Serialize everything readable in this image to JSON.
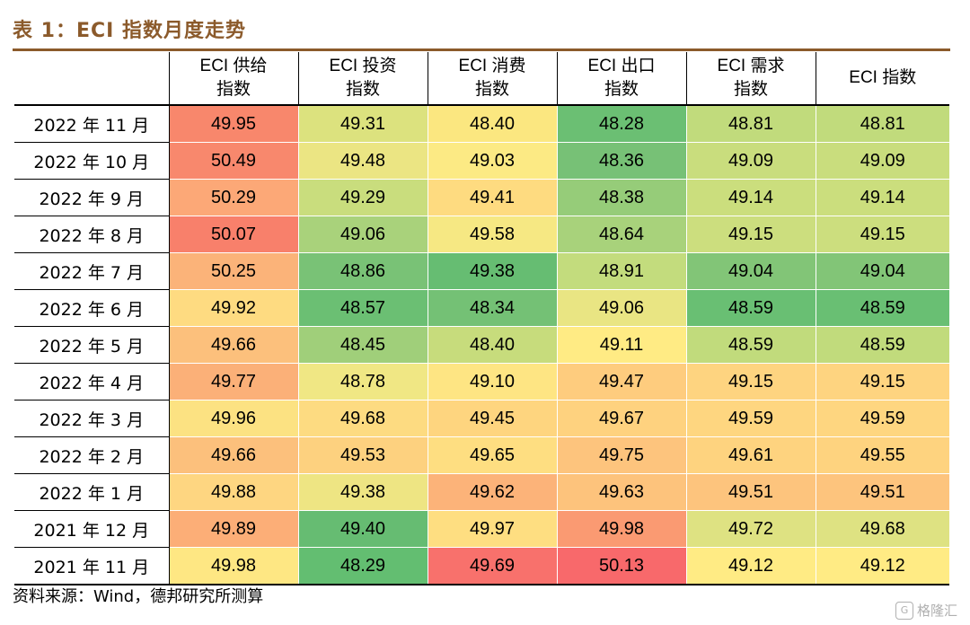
{
  "title": "表 1：ECI 指数月度走势",
  "columns": [
    {
      "line1": "ECI 供给",
      "line2": "指数"
    },
    {
      "line1": "ECI 投资",
      "line2": "指数"
    },
    {
      "line1": "ECI 消费",
      "line2": "指数"
    },
    {
      "line1": "ECI 出口",
      "line2": "指数"
    },
    {
      "line1": "ECI 需求",
      "line2": "指数"
    },
    {
      "line1": "ECI 指数",
      "line2": ""
    }
  ],
  "rows": [
    {
      "label": "2022 年 11 月",
      "values": [
        "49.95",
        "49.31",
        "48.40",
        "48.28",
        "48.81",
        "48.81"
      ],
      "colors": [
        "#F8876C",
        "#DCE27E",
        "#FBE780",
        "#6BBF73",
        "#C1DB7C",
        "#C1DB7C"
      ]
    },
    {
      "label": "2022 年 10 月",
      "values": [
        "50.49",
        "49.48",
        "49.03",
        "48.36",
        "49.09",
        "49.09"
      ],
      "colors": [
        "#F8886D",
        "#EBE583",
        "#FCEA84",
        "#77C176",
        "#C9DD7D",
        "#C9DD7D"
      ]
    },
    {
      "label": "2022 年 9 月",
      "values": [
        "50.29",
        "49.29",
        "49.41",
        "48.38",
        "49.14",
        "49.14"
      ],
      "colors": [
        "#FCA877",
        "#C9DD7D",
        "#FEDB80",
        "#96CC79",
        "#CBDE7D",
        "#CBDE7D"
      ]
    },
    {
      "label": "2022 年 8 月",
      "values": [
        "50.07",
        "49.06",
        "49.58",
        "48.64",
        "49.15",
        "49.15"
      ],
      "colors": [
        "#F8806B",
        "#A9D27B",
        "#F6E883",
        "#A8D27B",
        "#CCDE7E",
        "#CCDE7E"
      ]
    },
    {
      "label": "2022 年 7 月",
      "values": [
        "50.25",
        "48.86",
        "49.38",
        "48.91",
        "49.04",
        "49.04"
      ],
      "colors": [
        "#FBB379",
        "#79C276",
        "#66BD72",
        "#C3DC7D",
        "#82C577",
        "#82C577"
      ]
    },
    {
      "label": "2022 年 6 月",
      "values": [
        "49.92",
        "48.57",
        "48.34",
        "49.06",
        "48.59",
        "48.59"
      ],
      "colors": [
        "#FEDB81",
        "#6BBF73",
        "#74C175",
        "#E9E583",
        "#69BF73",
        "#69BF73"
      ]
    },
    {
      "label": "2022 年 5 月",
      "values": [
        "49.66",
        "48.45",
        "48.40",
        "49.11",
        "48.59",
        "48.59"
      ],
      "colors": [
        "#FCC07C",
        "#A0CF7A",
        "#C7DC7C",
        "#FFEB84",
        "#C1DB7C",
        "#C1DB7C"
      ]
    },
    {
      "label": "2022 年 4 月",
      "values": [
        "49.77",
        "48.78",
        "49.10",
        "49.47",
        "49.15",
        "49.15"
      ],
      "colors": [
        "#FBB078",
        "#F0E784",
        "#FEE583",
        "#FECC7E",
        "#FED480",
        "#FED480"
      ]
    },
    {
      "label": "2022 年 3 月",
      "values": [
        "49.96",
        "49.68",
        "49.45",
        "49.67",
        "49.59",
        "49.59"
      ],
      "colors": [
        "#FCE282",
        "#FDDB81",
        "#FED57F",
        "#FED27F",
        "#FED680",
        "#FED680"
      ]
    },
    {
      "label": "2022 年 2 月",
      "values": [
        "49.66",
        "49.53",
        "49.65",
        "49.75",
        "49.61",
        "49.55"
      ],
      "colors": [
        "#FCC07C",
        "#FDD17F",
        "#FEDE81",
        "#FDC47D",
        "#FED37F",
        "#FED37F"
      ]
    },
    {
      "label": "2022 年 1 月",
      "values": [
        "49.88",
        "49.38",
        "49.62",
        "49.63",
        "49.51",
        "49.51"
      ],
      "colors": [
        "#FED681",
        "#EEE583",
        "#FCB379",
        "#FDC37C",
        "#FDC47D",
        "#FDC47D"
      ]
    },
    {
      "label": "2021 年 12 月",
      "values": [
        "49.89",
        "49.40",
        "49.97",
        "49.98",
        "49.72",
        "49.68"
      ],
      "colors": [
        "#FCAE77",
        "#66BC72",
        "#FEDE81",
        "#FA9A72",
        "#DEE282",
        "#DEE282"
      ]
    },
    {
      "label": "2021 年 11 月",
      "values": [
        "49.98",
        "48.29",
        "49.69",
        "50.13",
        "49.12",
        "49.12"
      ],
      "colors": [
        "#FEE783",
        "#63BE71",
        "#F8716C",
        "#F8696B",
        "#FFEB84",
        "#FFEB84"
      ]
    }
  ],
  "source": "资料来源：Wind，德邦研究所测算",
  "watermark": "格隆汇"
}
